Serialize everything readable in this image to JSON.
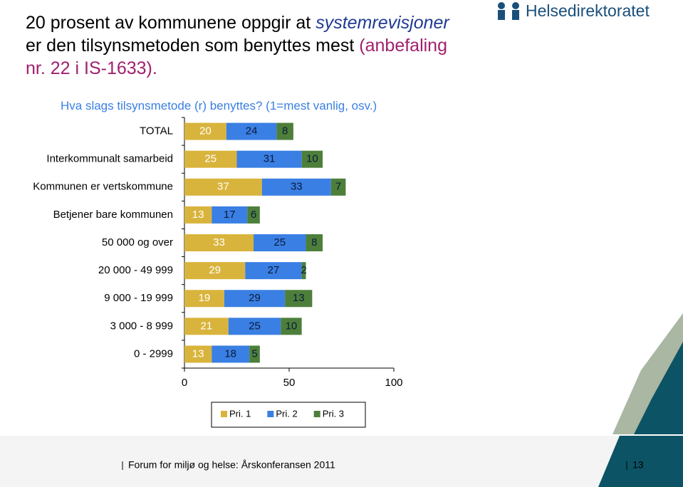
{
  "title_parts": [
    "20 prosent av kommunene oppgir at ",
    "systemrevisjoner",
    "er den tilsynsmetoden som benyttes mest ",
    "(anbefaling",
    "nr. 22 i IS-1633)."
  ],
  "logo": "Helsedirektoratet",
  "chart_data": {
    "type": "stacked-bar-horizontal",
    "title": "Hva slags tilsynsmetode (r) benyttes? (1=mest vanlig, osv.)",
    "categories": [
      "TOTAL",
      "Interkommunalt samarbeid",
      "Kommunen er vertskommune",
      "Betjener bare kommunen",
      "50 000 og over",
      "20 000 - 49 999",
      "9 000 - 19 999",
      "3 000 - 8 999",
      "0 - 2999"
    ],
    "series": [
      {
        "name": "Pri. 1",
        "color": "#d9b43c",
        "values": [
          20,
          25,
          37,
          13,
          33,
          29,
          19,
          21,
          13
        ]
      },
      {
        "name": "Pri. 2",
        "color": "#3a7fe3",
        "values": [
          24,
          31,
          33,
          17,
          25,
          27,
          29,
          25,
          18
        ]
      },
      {
        "name": "Pri. 3",
        "color": "#4d7f3b",
        "values": [
          8,
          10,
          7,
          6,
          8,
          2,
          13,
          10,
          5
        ]
      }
    ],
    "xlim": [
      0,
      100
    ],
    "xticks": [
      0,
      50,
      100
    ]
  },
  "footer": {
    "text": "Forum for miljø og helse: Årskonferansen 2011",
    "page": "13"
  }
}
